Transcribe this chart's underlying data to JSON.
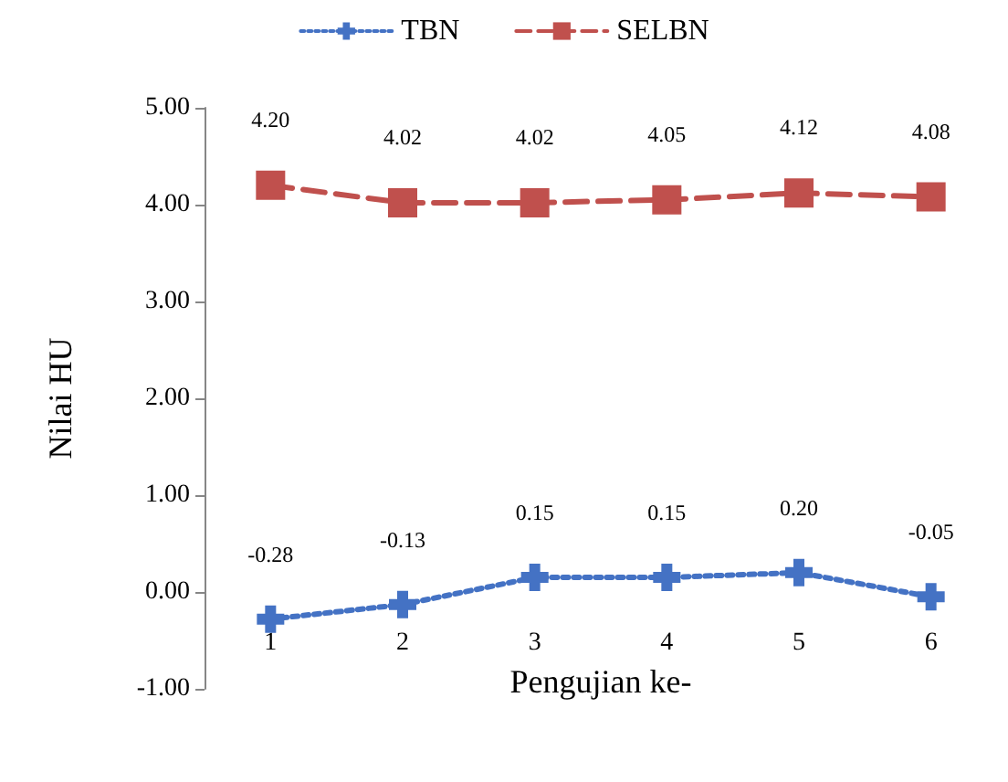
{
  "chart_data": {
    "type": "line",
    "xlabel": "Pengujian ke-",
    "ylabel": "Nilai HU",
    "categories": [
      "1",
      "2",
      "3",
      "4",
      "5",
      "6"
    ],
    "ylim": [
      -1,
      5
    ],
    "yticks": [
      {
        "value": -1,
        "label": "-1.00"
      },
      {
        "value": 0,
        "label": "0.00"
      },
      {
        "value": 1,
        "label": "1.00"
      },
      {
        "value": 2,
        "label": "2.00"
      },
      {
        "value": 3,
        "label": "3.00"
      },
      {
        "value": 4,
        "label": "4.00"
      },
      {
        "value": 5,
        "label": "5.00"
      }
    ],
    "grid": false,
    "legend": "top",
    "series": [
      {
        "name": "TBN",
        "color": "#4472c4",
        "marker": "cross",
        "line_style": "dotted",
        "values": [
          -0.28,
          -0.13,
          0.15,
          0.15,
          0.2,
          -0.05
        ],
        "value_labels": [
          "-0.28",
          "-0.13",
          "0.15",
          "0.15",
          "0.20",
          "-0.05"
        ]
      },
      {
        "name": "SELBN",
        "color": "#c0504d",
        "marker": "square",
        "line_style": "dashed",
        "values": [
          4.2,
          4.02,
          4.02,
          4.05,
          4.12,
          4.08
        ],
        "value_labels": [
          "4.20",
          "4.02",
          "4.02",
          "4.05",
          "4.12",
          "4.08"
        ]
      }
    ]
  }
}
